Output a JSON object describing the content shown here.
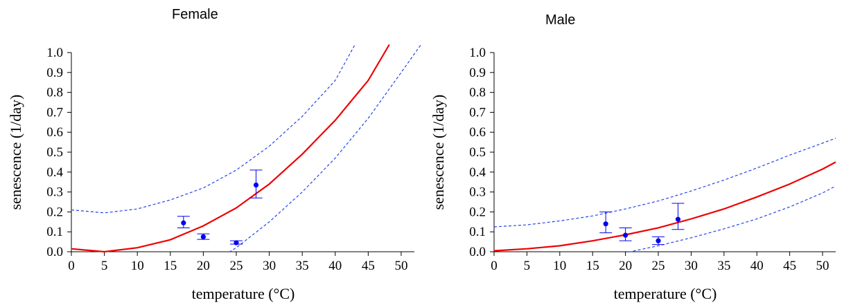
{
  "chart_data": [
    {
      "type": "scatter",
      "title": "Female",
      "xlabel": "temperature (°C)",
      "ylabel": "senescence (1/day)",
      "xlim": [
        0,
        52
      ],
      "ylim": [
        0,
        1.0
      ],
      "xticks": [
        0,
        5,
        10,
        15,
        20,
        25,
        30,
        35,
        40,
        45,
        50
      ],
      "yticks": [
        "0.0",
        "0.1",
        "0.2",
        "0.3",
        "0.4",
        "0.5",
        "0.6",
        "0.7",
        "0.8",
        "0.9",
        "1.0"
      ],
      "grid": false,
      "series": [
        {
          "kind": "points",
          "x": [
            17,
            20,
            25,
            28
          ],
          "y": [
            0.145,
            0.075,
            0.045,
            0.335
          ],
          "yerr_low": [
            0.12,
            0.062,
            0.038,
            0.27
          ],
          "yerr_high": [
            0.178,
            0.09,
            0.055,
            0.41
          ]
        },
        {
          "kind": "fit",
          "x": [
            0,
            5,
            10,
            15,
            20,
            25,
            30,
            35,
            40,
            45,
            48.2
          ],
          "y": [
            0.015,
            0.0,
            0.02,
            0.06,
            0.13,
            0.22,
            0.34,
            0.49,
            0.66,
            0.86,
            1.04
          ]
        },
        {
          "kind": "band-upper",
          "x": [
            0,
            5,
            10,
            15,
            20,
            25,
            30,
            35,
            40,
            43
          ],
          "y": [
            0.21,
            0.195,
            0.215,
            0.26,
            0.32,
            0.41,
            0.53,
            0.68,
            0.86,
            1.04
          ]
        },
        {
          "kind": "band-lower",
          "x": [
            22,
            25,
            30,
            35,
            40,
            45,
            50,
            53
          ],
          "y": [
            -0.04,
            0.02,
            0.15,
            0.3,
            0.47,
            0.67,
            0.9,
            1.04
          ]
        }
      ],
      "colors": {
        "points": "#0000ee",
        "fit": "#ee0000",
        "band": "#2244ee"
      }
    },
    {
      "type": "scatter",
      "title": "Male",
      "xlabel": "temperature (°C)",
      "ylabel": "senescence (1/day)",
      "xlim": [
        0,
        52
      ],
      "ylim": [
        0,
        1.0
      ],
      "xticks": [
        0,
        5,
        10,
        15,
        20,
        25,
        30,
        35,
        40,
        45,
        50
      ],
      "yticks": [
        "0.0",
        "0.1",
        "0.2",
        "0.3",
        "0.4",
        "0.5",
        "0.6",
        "0.7",
        "0.8",
        "0.9",
        "1.0"
      ],
      "grid": false,
      "series": [
        {
          "kind": "points",
          "x": [
            17,
            20,
            25,
            28
          ],
          "y": [
            0.14,
            0.083,
            0.055,
            0.163
          ],
          "yerr_low": [
            0.095,
            0.055,
            0.036,
            0.112
          ],
          "yerr_high": [
            0.2,
            0.12,
            0.075,
            0.243
          ]
        },
        {
          "kind": "fit",
          "x": [
            0,
            5,
            10,
            15,
            20,
            25,
            30,
            35,
            40,
            45,
            50,
            52
          ],
          "y": [
            0.005,
            0.015,
            0.03,
            0.055,
            0.085,
            0.12,
            0.165,
            0.215,
            0.275,
            0.34,
            0.415,
            0.45
          ]
        },
        {
          "kind": "band-upper",
          "x": [
            0,
            5,
            10,
            15,
            20,
            25,
            30,
            35,
            40,
            45,
            50,
            52
          ],
          "y": [
            0.125,
            0.135,
            0.155,
            0.18,
            0.215,
            0.255,
            0.305,
            0.36,
            0.42,
            0.485,
            0.545,
            0.57
          ]
        },
        {
          "kind": "band-lower",
          "x": [
            19,
            20,
            25,
            30,
            35,
            40,
            45,
            50,
            52
          ],
          "y": [
            -0.01,
            -0.005,
            0.03,
            0.07,
            0.115,
            0.165,
            0.225,
            0.295,
            0.33
          ]
        }
      ],
      "colors": {
        "points": "#0000ee",
        "fit": "#ee0000",
        "band": "#2244ee"
      }
    }
  ]
}
